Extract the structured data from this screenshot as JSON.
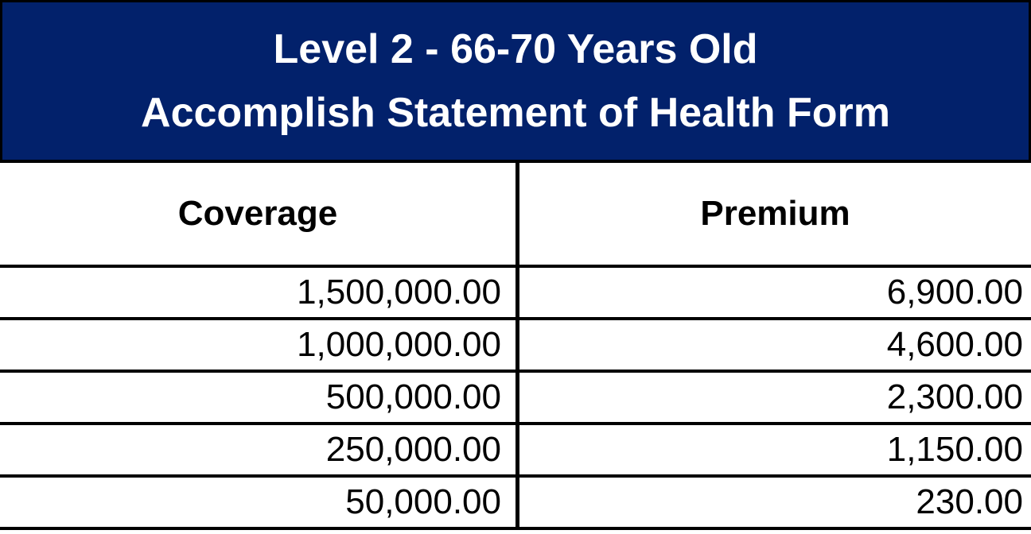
{
  "banner": {
    "title_line1": "Level 2 - 66-70 Years Old",
    "title_line2": "Accomplish Statement of Health Form",
    "bg_color": "#02216b",
    "text_color": "#ffffff"
  },
  "table": {
    "headers": {
      "coverage": "Coverage",
      "premium": "Premium"
    },
    "rows": [
      {
        "coverage": "1,500,000.00",
        "premium": "6,900.00"
      },
      {
        "coverage": "1,000,000.00",
        "premium": "4,600.00"
      },
      {
        "coverage": "500,000.00",
        "premium": "2,300.00"
      },
      {
        "coverage": "250,000.00",
        "premium": "1,150.00"
      },
      {
        "coverage": "50,000.00",
        "premium": "230.00"
      }
    ]
  },
  "colors": {
    "border": "#000000",
    "table_bg": "#ffffff",
    "text": "#000000"
  }
}
